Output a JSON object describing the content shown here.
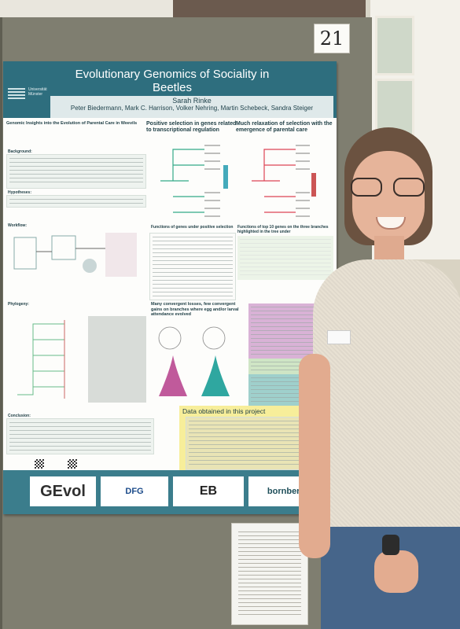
{
  "board_number": "21",
  "poster": {
    "title": "Evolutionary Genomics of Sociality in Beetles",
    "presenter": "Sarah Rinke",
    "authors": "Peter Biedermann, Mark C. Harrison, Volker Nehring, Martin Schebeck, Sandra Steiger",
    "university_logo": "Universität Münster",
    "subtitle": "Genomic Insights into the Evolution of Parental Care in Weevils",
    "sections": {
      "background": "Background:",
      "hypotheses": "Hypotheses:",
      "workflow": "Workflow:",
      "phylogeny": "Phylogeny:",
      "conclusion": "Conclusion:"
    },
    "headings": {
      "positive_selection": "Positive selection in genes related to transcriptional regulation",
      "relaxation": "Much relaxation of selection with the emergence of parental care",
      "genes_positive": "Functions of genes under positive selection",
      "top_genes": "Functions of top 10 genes on the three branches highlighted in the tree under",
      "convergent": "Many convergent losses, few convergent gains on branches where egg and/or larval attendance evolved",
      "data_title": "Data obtained in this project"
    },
    "footer_logos": [
      "GEvol",
      "DFG",
      "EB",
      "bornberglab"
    ]
  },
  "colors": {
    "header": "#2e6e7e",
    "footer": "#3b7d8c",
    "pink_box": "#d9b2d6",
    "teal_box": "#9fd0cc",
    "yellow_box": "#f7ee9a"
  }
}
